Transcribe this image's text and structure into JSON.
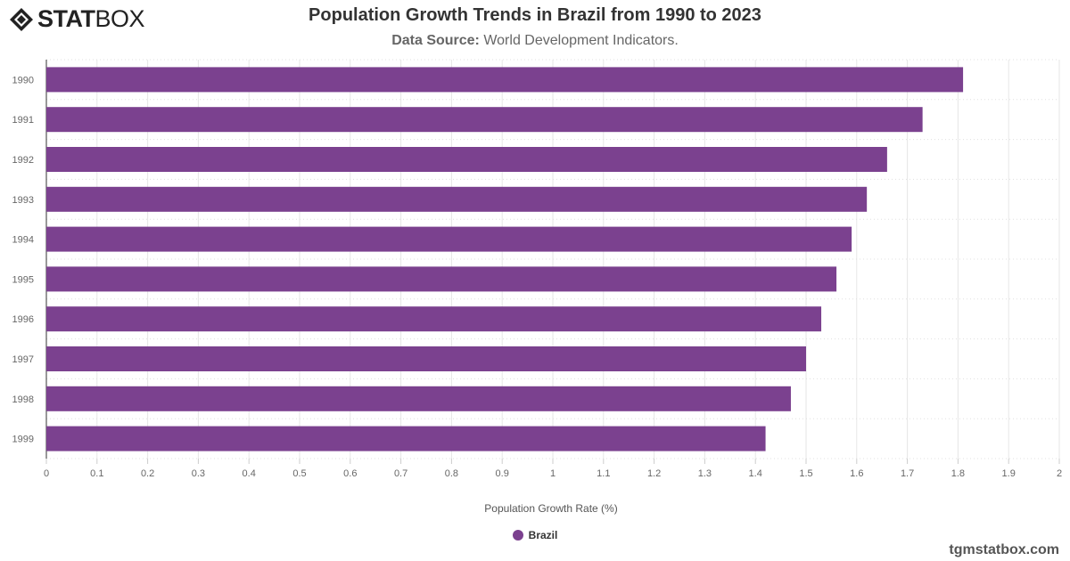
{
  "logo": {
    "text_bold": "STAT",
    "text_light": "BOX"
  },
  "header": {
    "title": "Population Growth Trends in Brazil from 1990 to 2023",
    "source_label": "Data Source:",
    "source_value": "World Development Indicators."
  },
  "footer": {
    "credit": "tgmstatbox.com"
  },
  "colors": {
    "bar": "#7b418f",
    "grid": "#e6e6e6"
  },
  "chart_data": {
    "type": "bar",
    "orientation": "horizontal",
    "categories": [
      "1990",
      "1991",
      "1992",
      "1993",
      "1994",
      "1995",
      "1996",
      "1997",
      "1998",
      "1999"
    ],
    "series": [
      {
        "name": "Brazil",
        "values": [
          1.81,
          1.73,
          1.66,
          1.62,
          1.59,
          1.56,
          1.53,
          1.5,
          1.47,
          1.42
        ]
      }
    ],
    "xlabel": "Population Growth Rate (%)",
    "ylabel": "",
    "xlim": [
      0,
      2
    ],
    "xticks": [
      "0",
      "0.1",
      "0.2",
      "0.3",
      "0.4",
      "0.5",
      "0.6",
      "0.7",
      "0.8",
      "0.9",
      "1",
      "1.1",
      "1.2",
      "1.3",
      "1.4",
      "1.5",
      "1.6",
      "1.7",
      "1.8",
      "1.9",
      "2"
    ],
    "grid": true,
    "legend": "bottom-center"
  }
}
